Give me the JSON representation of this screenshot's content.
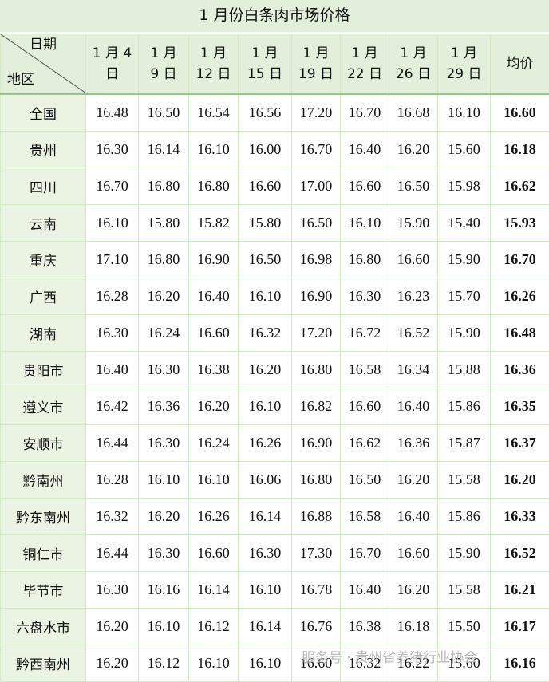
{
  "title": "1 月份白条肉市场价格",
  "header": {
    "corner_top": "日期",
    "corner_bottom": "地区",
    "columns": [
      [
        "1 月 4",
        "日"
      ],
      [
        "1 月",
        "9 日"
      ],
      [
        "1 月",
        "12 日"
      ],
      [
        "1 月",
        "15 日"
      ],
      [
        "1 月",
        "19 日"
      ],
      [
        "1 月",
        "22 日"
      ],
      [
        "1 月",
        "26 日"
      ],
      [
        "1 月",
        "29 日"
      ]
    ],
    "average": "均价"
  },
  "rows": [
    [
      "全国",
      "16.48",
      "16.50",
      "16.54",
      "16.56",
      "17.20",
      "16.70",
      "16.68",
      "16.10",
      "16.60"
    ],
    [
      "贵州",
      "16.30",
      "16.14",
      "16.10",
      "16.00",
      "16.70",
      "16.40",
      "16.20",
      "15.60",
      "16.18"
    ],
    [
      "四川",
      "16.70",
      "16.80",
      "16.80",
      "16.60",
      "17.00",
      "16.60",
      "16.50",
      "15.98",
      "16.62"
    ],
    [
      "云南",
      "16.10",
      "15.80",
      "15.82",
      "15.80",
      "16.50",
      "16.10",
      "15.90",
      "15.40",
      "15.93"
    ],
    [
      "重庆",
      "17.10",
      "16.80",
      "16.90",
      "16.50",
      "16.98",
      "16.80",
      "16.60",
      "15.90",
      "16.70"
    ],
    [
      "广西",
      "16.28",
      "16.20",
      "16.40",
      "16.10",
      "16.90",
      "16.30",
      "16.23",
      "15.70",
      "16.26"
    ],
    [
      "湖南",
      "16.30",
      "16.24",
      "16.60",
      "16.32",
      "17.20",
      "16.72",
      "16.52",
      "15.90",
      "16.48"
    ],
    [
      "贵阳市",
      "16.40",
      "16.30",
      "16.38",
      "16.20",
      "16.80",
      "16.58",
      "16.34",
      "15.88",
      "16.36"
    ],
    [
      "遵义市",
      "16.42",
      "16.36",
      "16.20",
      "16.10",
      "16.82",
      "16.60",
      "16.40",
      "15.86",
      "16.35"
    ],
    [
      "安顺市",
      "16.44",
      "16.30",
      "16.24",
      "16.26",
      "16.90",
      "16.62",
      "16.36",
      "15.87",
      "16.37"
    ],
    [
      "黔南州",
      "16.28",
      "16.10",
      "16.10",
      "16.06",
      "16.80",
      "16.50",
      "16.20",
      "15.58",
      "16.20"
    ],
    [
      "黔东南州",
      "16.32",
      "16.20",
      "16.26",
      "16.14",
      "16.88",
      "16.58",
      "16.40",
      "15.86",
      "16.33"
    ],
    [
      "铜仁市",
      "16.44",
      "16.30",
      "16.60",
      "16.30",
      "17.30",
      "16.70",
      "16.60",
      "15.90",
      "16.52"
    ],
    [
      "毕节市",
      "16.30",
      "16.16",
      "16.14",
      "16.10",
      "16.78",
      "16.40",
      "16.20",
      "15.58",
      "16.21"
    ],
    [
      "六盘水市",
      "16.20",
      "16.10",
      "16.12",
      "16.14",
      "16.76",
      "16.38",
      "16.18",
      "15.50",
      "16.17"
    ],
    [
      "黔西南州",
      "16.20",
      "16.12",
      "16.10",
      "16.10",
      "16.60",
      "16.32",
      "16.22",
      "15.60",
      "16.16"
    ]
  ],
  "watermark": "服务号 · 贵州省养猪行业协会"
}
